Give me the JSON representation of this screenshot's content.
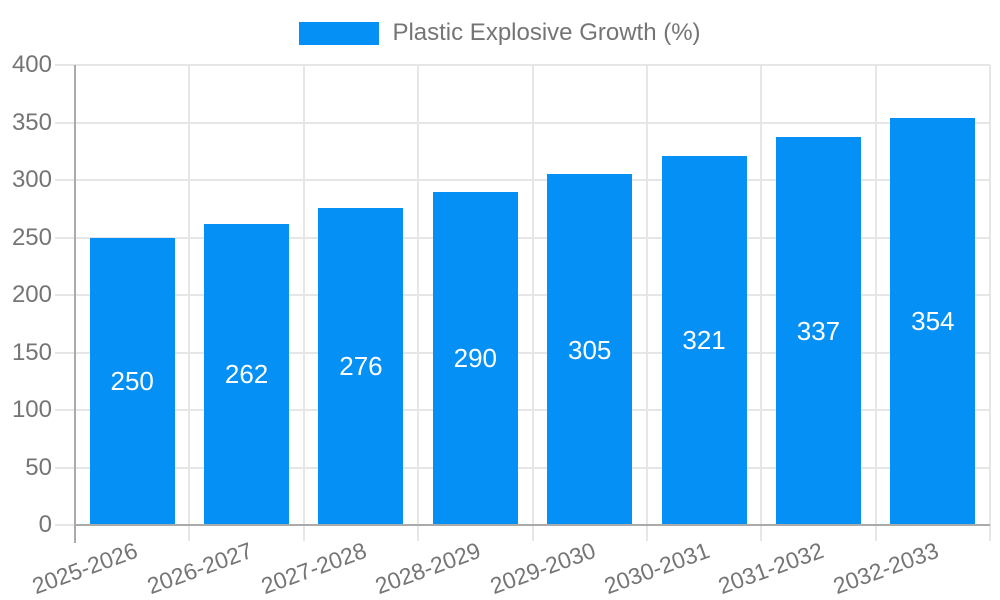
{
  "legend": {
    "label": "Plastic Explosive Growth (%)"
  },
  "chart_data": {
    "type": "bar",
    "title": "Plastic Explosive Growth (%)",
    "categories": [
      "2025-2026",
      "2026-2027",
      "2027-2028",
      "2028-2029",
      "2029-2030",
      "2030-2031",
      "2031-2032",
      "2032-2033"
    ],
    "values": [
      250,
      262,
      276,
      290,
      305,
      321,
      337,
      354
    ],
    "value_labels": [
      "250",
      "262",
      "276",
      "290",
      "305",
      "321",
      "337",
      "354"
    ],
    "xlabel": "",
    "ylabel": "",
    "ylim": [
      0,
      400
    ],
    "yticks": [
      0,
      50,
      100,
      150,
      200,
      250,
      300,
      350,
      400
    ],
    "grid": true,
    "legend_position": "top-center",
    "x_label_rotation_deg": -20,
    "colors": {
      "bar": "#0590f5",
      "value_label": "#ffffff",
      "axis_text": "#757575",
      "gridline": "#e6e6e6",
      "axis_line": "#aaaaaa",
      "background": "#ffffff"
    }
  }
}
